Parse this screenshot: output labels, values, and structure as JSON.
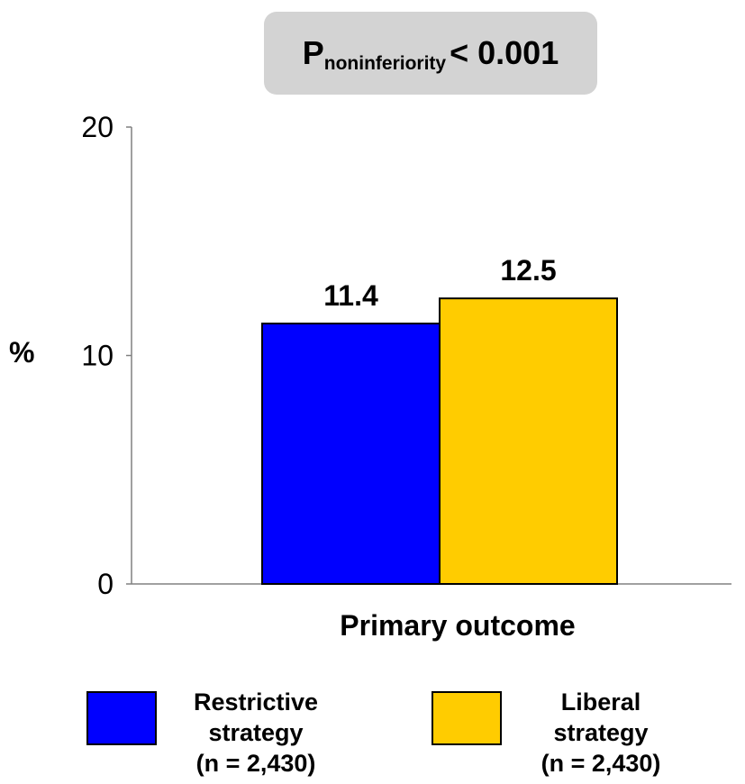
{
  "annotation": {
    "prefix": "P",
    "subscript": "noninferiority",
    "suffix": "< 0.001"
  },
  "chart_data": {
    "type": "bar",
    "ylabel": "%",
    "xlabel": "Primary outcome",
    "ylim": [
      0,
      20
    ],
    "yticks": [
      "0",
      "10",
      "20"
    ],
    "categories": [
      "Primary outcome"
    ],
    "grid": false,
    "series": [
      {
        "name": "Restrictive strategy (n = 2,430)",
        "value": 11.4,
        "value_label": "11.4",
        "color": "#0000ff"
      },
      {
        "name": "Liberal strategy (n = 2,430)",
        "value": 12.5,
        "value_label": "12.5",
        "color": "#ffcc00"
      }
    ]
  },
  "legend": {
    "placement": "bottom",
    "items": [
      {
        "line1": "Restrictive",
        "line2": "strategy",
        "line3": "(n = 2,430)",
        "color": "#0000ff"
      },
      {
        "line1": "Liberal",
        "line2": "strategy",
        "line3": "(n = 2,430)",
        "color": "#ffcc00"
      }
    ]
  }
}
